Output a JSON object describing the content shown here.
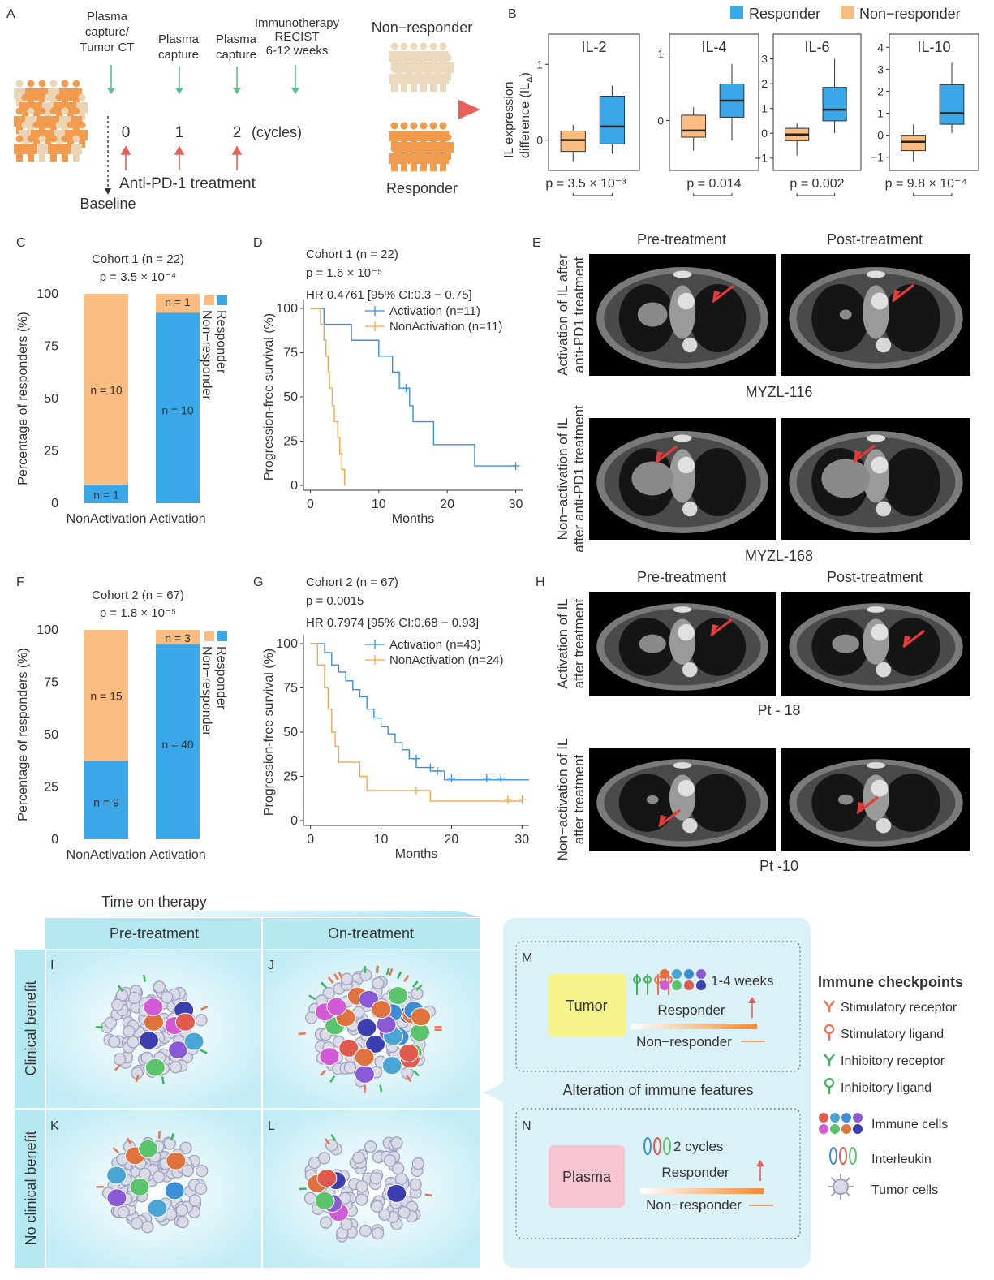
{
  "colors": {
    "responder": "#3aa7e8",
    "nonresponder": "#f9bd82",
    "activation": "#3b90e0",
    "nonactivation": "#f2a94a",
    "red": "#e8605c",
    "green": "#5fbe8a",
    "panel_bg": "#c7eef5"
  },
  "panel_letters": {
    "A": "A",
    "B": "B",
    "C": "C",
    "D": "D",
    "E": "E",
    "F": "F",
    "G": "G",
    "H": "H",
    "I": "I",
    "J": "J",
    "K": "K",
    "L": "L",
    "M": "M",
    "N": "N"
  },
  "panelA": {
    "step_plasma_ct": "Plasma\ncapture/\nTumor CT",
    "step_plasma1": "Plasma\ncapture",
    "step_plasma2": "Plasma\ncapture",
    "step_immuno": "Immunotherapy\nRECIST\n6-12 weeks",
    "nonresponder": "Non−responder",
    "responder": "Responder",
    "cycles": [
      "0",
      "1",
      "2"
    ],
    "cycles_label": "(cycles)",
    "treatment": "Anti-PD-1 treatment",
    "baseline": "Baseline"
  },
  "panelB": {
    "legend": [
      "Responder",
      "Non−responder"
    ],
    "ylabel": "IL expression\ndifference (IL",
    "ylabel_sub": "Δ",
    "ylabel_end": ")"
  },
  "chart_data": [
    {
      "panel": "B",
      "type": "box",
      "title": "IL-2",
      "p": "p =  3.5 × 10⁻³",
      "yticks": [
        0,
        1
      ],
      "series": [
        {
          "name": "Non−responder",
          "q1": -0.15,
          "median": 0.0,
          "q3": 0.12,
          "min": -0.28,
          "max": 0.2
        },
        {
          "name": "Responder",
          "q1": -0.05,
          "median": 0.18,
          "q3": 0.58,
          "min": -0.18,
          "max": 0.72
        }
      ]
    },
    {
      "panel": "B",
      "type": "box",
      "title": "IL-4",
      "p": "p = 0.014",
      "yticks": [
        0,
        1
      ],
      "series": [
        {
          "name": "Non−responder",
          "q1": -0.25,
          "median": -0.15,
          "q3": 0.08,
          "min": -0.45,
          "max": 0.2
        },
        {
          "name": "Responder",
          "q1": 0.05,
          "median": 0.3,
          "q3": 0.55,
          "min": -0.3,
          "max": 0.85
        }
      ]
    },
    {
      "panel": "B",
      "type": "box",
      "title": "IL-6",
      "p": "p = 0.002",
      "yticks": [
        -1,
        0,
        1,
        2,
        3
      ],
      "series": [
        {
          "name": "Non−responder",
          "q1": -0.3,
          "median": -0.05,
          "q3": 0.2,
          "min": -0.9,
          "max": 0.4
        },
        {
          "name": "Responder",
          "q1": 0.5,
          "median": 0.95,
          "q3": 1.85,
          "min": 0.0,
          "max": 3.0
        }
      ]
    },
    {
      "panel": "B",
      "type": "box",
      "title": "IL-10",
      "p": "p =  9.8 × 10⁻⁴",
      "yticks": [
        -1,
        0,
        1,
        2,
        3,
        4
      ],
      "series": [
        {
          "name": "Non−responder",
          "q1": -0.7,
          "median": -0.3,
          "q3": 0.0,
          "min": -1.2,
          "max": 0.5
        },
        {
          "name": "Responder",
          "q1": 0.5,
          "median": 1.0,
          "q3": 2.3,
          "min": 0.1,
          "max": 3.3
        }
      ]
    },
    {
      "panel": "C",
      "type": "bar",
      "title": "Cohort 1 (n = 22)",
      "p": "p = 3.5 × 10⁻⁴",
      "ylabel": "Percentage of responders (%)",
      "categories": [
        "NonActivation",
        "Activation"
      ],
      "ylim": [
        0,
        100
      ],
      "yticks": [
        0,
        25,
        50,
        75,
        100
      ],
      "series": [
        {
          "name": "Responder",
          "values": [
            9,
            91
          ],
          "labels": [
            "n = 1",
            "n = 10"
          ]
        },
        {
          "name": "Non−responder",
          "values": [
            91,
            9
          ],
          "labels": [
            "n = 10",
            "n = 1"
          ]
        }
      ]
    },
    {
      "panel": "D",
      "type": "line",
      "title": "Cohort 1 (n = 22)",
      "p": "p = 1.6 × 10⁻⁵",
      "hr": "HR 0.4761 [95% CI:0.3 − 0.75]",
      "xlabel": "Months",
      "ylabel": "Progression-free survival (%)",
      "xticks": [
        0,
        10,
        20,
        30
      ],
      "yticks": [
        0,
        25,
        50,
        75,
        100
      ],
      "xlim": [
        -1,
        31
      ],
      "series": [
        {
          "name": "Activation (n=11)",
          "steps": [
            [
              0,
              100
            ],
            [
              2,
              100
            ],
            [
              2,
              91
            ],
            [
              6,
              91
            ],
            [
              6,
              82
            ],
            [
              10,
              82
            ],
            [
              10,
              73
            ],
            [
              12,
              73
            ],
            [
              12,
              64
            ],
            [
              13,
              64
            ],
            [
              13,
              55
            ],
            [
              14.5,
              55
            ],
            [
              14.5,
              45
            ],
            [
              15,
              45
            ],
            [
              15,
              36
            ],
            [
              18,
              36
            ],
            [
              18,
              23
            ],
            [
              24,
              23
            ],
            [
              24,
              11
            ],
            [
              30,
              11
            ]
          ],
          "censors": [
            [
              14,
              55
            ],
            [
              30,
              11
            ]
          ]
        },
        {
          "name": "NonActivation (n=11)",
          "steps": [
            [
              0,
              100
            ],
            [
              1.5,
              100
            ],
            [
              1.5,
              91
            ],
            [
              2,
              91
            ],
            [
              2,
              82
            ],
            [
              2.3,
              82
            ],
            [
              2.3,
              73
            ],
            [
              2.6,
              73
            ],
            [
              2.6,
              64
            ],
            [
              2.8,
              64
            ],
            [
              2.8,
              55
            ],
            [
              3.2,
              55
            ],
            [
              3.2,
              45
            ],
            [
              3.5,
              45
            ],
            [
              3.5,
              36
            ],
            [
              4,
              36
            ],
            [
              4,
              27
            ],
            [
              4.3,
              27
            ],
            [
              4.3,
              18
            ],
            [
              4.6,
              18
            ],
            [
              4.6,
              9
            ],
            [
              5,
              9
            ],
            [
              5,
              0
            ]
          ],
          "censors": []
        }
      ]
    },
    {
      "panel": "F",
      "type": "bar",
      "title": "Cohort 2 (n = 67)",
      "p": "p = 1.8 × 10⁻⁵",
      "ylabel": "Percentage of responders (%)",
      "categories": [
        "NonActivation",
        "Activation"
      ],
      "ylim": [
        0,
        100
      ],
      "yticks": [
        0,
        25,
        50,
        75,
        100
      ],
      "series": [
        {
          "name": "Responder",
          "values": [
            37.5,
            93
          ],
          "labels": [
            "n = 9",
            "n = 40"
          ]
        },
        {
          "name": "Non−responder",
          "values": [
            62.5,
            7
          ],
          "labels": [
            "n = 15",
            "n = 3"
          ]
        }
      ]
    },
    {
      "panel": "G",
      "type": "line",
      "title": "Cohort 2 (n = 67)",
      "p": "p = 0.0015",
      "hr": "HR 0.7974 [95% CI:0.68 − 0.93]",
      "xlabel": "Months",
      "ylabel": "Progression-free survival (%)",
      "xticks": [
        0,
        10,
        20,
        30
      ],
      "yticks": [
        0,
        25,
        50,
        75,
        100
      ],
      "xlim": [
        -1,
        31
      ],
      "series": [
        {
          "name": "Activation (n=43)",
          "steps": [
            [
              0,
              100
            ],
            [
              2,
              100
            ],
            [
              2,
              95
            ],
            [
              3,
              95
            ],
            [
              3,
              88
            ],
            [
              4,
              88
            ],
            [
              4,
              84
            ],
            [
              5,
              84
            ],
            [
              5,
              79
            ],
            [
              6,
              79
            ],
            [
              6,
              74
            ],
            [
              7,
              74
            ],
            [
              7,
              70
            ],
            [
              8,
              70
            ],
            [
              8,
              63
            ],
            [
              9,
              63
            ],
            [
              9,
              58
            ],
            [
              10,
              58
            ],
            [
              10,
              53
            ],
            [
              11,
              53
            ],
            [
              11,
              49
            ],
            [
              12,
              49
            ],
            [
              12,
              44
            ],
            [
              13,
              44
            ],
            [
              13,
              40
            ],
            [
              14,
              40
            ],
            [
              14,
              35
            ],
            [
              15,
              35
            ],
            [
              15,
              30
            ],
            [
              17,
              30
            ],
            [
              17,
              28
            ],
            [
              19,
              28
            ],
            [
              19,
              23
            ],
            [
              31,
              23
            ]
          ],
          "censors": [
            [
              15,
              35
            ],
            [
              17,
              30
            ],
            [
              18,
              28
            ],
            [
              20,
              24
            ],
            [
              25,
              24
            ],
            [
              27,
              24
            ]
          ]
        },
        {
          "name": "NonActivation (n=24)",
          "steps": [
            [
              0,
              100
            ],
            [
              1,
              100
            ],
            [
              1,
              88
            ],
            [
              2,
              88
            ],
            [
              2,
              75
            ],
            [
              2.5,
              75
            ],
            [
              2.5,
              63
            ],
            [
              3,
              63
            ],
            [
              3,
              50
            ],
            [
              3.5,
              50
            ],
            [
              3.5,
              42
            ],
            [
              4,
              42
            ],
            [
              4,
              33
            ],
            [
              7,
              33
            ],
            [
              7,
              25
            ],
            [
              8,
              25
            ],
            [
              8,
              17
            ],
            [
              15,
              17
            ],
            [
              15,
              17
            ],
            [
              17,
              17
            ],
            [
              17,
              11
            ],
            [
              30,
              11
            ]
          ],
          "censors": [
            [
              15,
              17
            ],
            [
              28,
              12
            ],
            [
              30,
              12
            ]
          ]
        }
      ]
    }
  ],
  "panelC_legend": [
    "Responder",
    "Non−responder"
  ],
  "panelF_legend": [
    "Responder",
    "Non−responder"
  ],
  "panelE": {
    "pre": "Pre-treatment",
    "post": "Post-treatment",
    "row1": "Activation of IL after\nanti-PD1 treatment",
    "id1": "MYZL-116",
    "row2": "Non−activation of IL\nafter anti-PD1 treatment",
    "id2": "MYZL-168"
  },
  "panelH": {
    "pre": "Pre-treatment",
    "post": "Post-treatment",
    "row1": "Activation of IL\nafter treatment",
    "id1": "Pt - 18",
    "row2": "Non−activation of IL\nafter  treatment",
    "id2": "Pt -10"
  },
  "bottom": {
    "time": "Time on therapy",
    "pre": "Pre-treatment",
    "on": "On-treatment",
    "benefit": "Clinical benefit",
    "nobenefit": "No clinical benefit",
    "tumor": "Tumor",
    "weeks": "1-4 weeks",
    "responder": "Responder",
    "nonresponder": "Non−responder",
    "alteration": "Alteration of immune features",
    "plasma": "Plasma",
    "cycles": "2 cycles",
    "legend_title": "Immune checkpoints",
    "legend": [
      "Stimulatory receptor",
      "Stimulatory ligand",
      "Inhibitory receptor",
      "Inhibitory ligand",
      "Immune cells",
      "Interleukin",
      "Tumor cells"
    ]
  }
}
